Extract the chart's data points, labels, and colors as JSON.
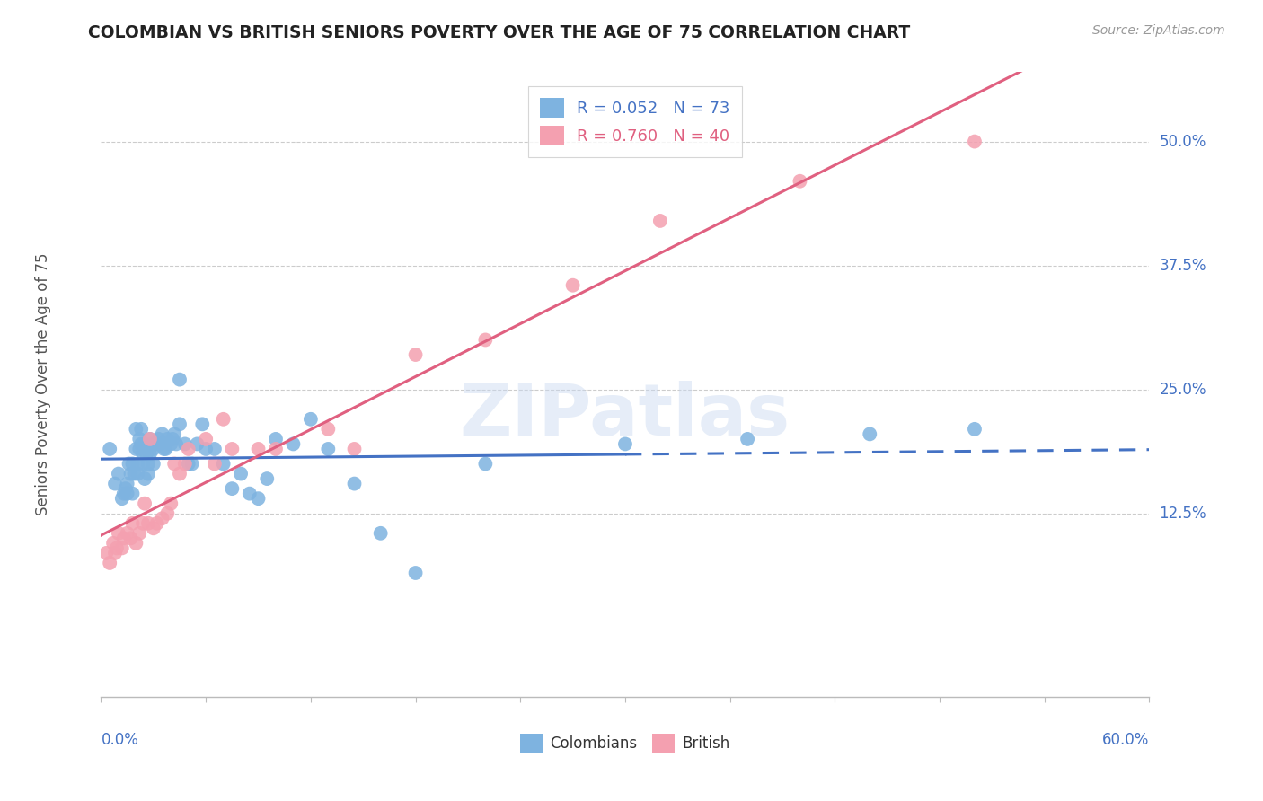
{
  "title": "COLOMBIAN VS BRITISH SENIORS POVERTY OVER THE AGE OF 75 CORRELATION CHART",
  "source": "Source: ZipAtlas.com",
  "ylabel": "Seniors Poverty Over the Age of 75",
  "ytick_values": [
    0.125,
    0.25,
    0.375,
    0.5
  ],
  "ytick_labels": [
    "12.5%",
    "25.0%",
    "37.5%",
    "50.0%"
  ],
  "xmin": 0.0,
  "xmax": 0.6,
  "ymin": -0.06,
  "ymax": 0.57,
  "colombian_R": 0.052,
  "colombian_N": 73,
  "british_R": 0.76,
  "british_N": 40,
  "colombian_color": "#7eb3e0",
  "british_color": "#f4a0b0",
  "colombian_line_color": "#4472c4",
  "british_line_color": "#e06080",
  "grid_color": "#cccccc",
  "background_color": "#ffffff",
  "title_color": "#222222",
  "axis_label_color": "#4472c4",
  "source_color": "#999999",
  "watermark": "ZIPatlas",
  "dash_cutoff": 0.3,
  "col_scatter_x": [
    0.005,
    0.008,
    0.01,
    0.012,
    0.013,
    0.014,
    0.015,
    0.015,
    0.016,
    0.017,
    0.018,
    0.018,
    0.019,
    0.02,
    0.02,
    0.021,
    0.021,
    0.022,
    0.022,
    0.023,
    0.023,
    0.024,
    0.024,
    0.025,
    0.025,
    0.026,
    0.026,
    0.027,
    0.027,
    0.028,
    0.028,
    0.029,
    0.03,
    0.03,
    0.031,
    0.032,
    0.033,
    0.034,
    0.035,
    0.036,
    0.037,
    0.038,
    0.04,
    0.041,
    0.042,
    0.043,
    0.045,
    0.045,
    0.048,
    0.05,
    0.052,
    0.055,
    0.058,
    0.06,
    0.065,
    0.07,
    0.075,
    0.08,
    0.085,
    0.09,
    0.095,
    0.1,
    0.11,
    0.12,
    0.13,
    0.145,
    0.16,
    0.18,
    0.22,
    0.3,
    0.37,
    0.44,
    0.5
  ],
  "col_scatter_y": [
    0.19,
    0.155,
    0.165,
    0.14,
    0.145,
    0.15,
    0.155,
    0.145,
    0.175,
    0.165,
    0.175,
    0.145,
    0.165,
    0.19,
    0.21,
    0.165,
    0.175,
    0.2,
    0.19,
    0.21,
    0.195,
    0.175,
    0.185,
    0.195,
    0.16,
    0.185,
    0.19,
    0.175,
    0.165,
    0.2,
    0.185,
    0.195,
    0.175,
    0.19,
    0.195,
    0.195,
    0.2,
    0.195,
    0.205,
    0.19,
    0.19,
    0.2,
    0.195,
    0.2,
    0.205,
    0.195,
    0.215,
    0.26,
    0.195,
    0.175,
    0.175,
    0.195,
    0.215,
    0.19,
    0.19,
    0.175,
    0.15,
    0.165,
    0.145,
    0.14,
    0.16,
    0.2,
    0.195,
    0.22,
    0.19,
    0.155,
    0.105,
    0.065,
    0.175,
    0.195,
    0.2,
    0.205,
    0.21
  ],
  "brit_scatter_x": [
    0.003,
    0.005,
    0.007,
    0.008,
    0.009,
    0.01,
    0.012,
    0.013,
    0.015,
    0.017,
    0.018,
    0.02,
    0.022,
    0.024,
    0.025,
    0.027,
    0.028,
    0.03,
    0.032,
    0.035,
    0.038,
    0.04,
    0.042,
    0.045,
    0.048,
    0.05,
    0.06,
    0.065,
    0.07,
    0.075,
    0.09,
    0.1,
    0.13,
    0.145,
    0.18,
    0.22,
    0.27,
    0.32,
    0.4,
    0.5
  ],
  "brit_scatter_y": [
    0.085,
    0.075,
    0.095,
    0.085,
    0.09,
    0.105,
    0.09,
    0.1,
    0.105,
    0.1,
    0.115,
    0.095,
    0.105,
    0.115,
    0.135,
    0.115,
    0.2,
    0.11,
    0.115,
    0.12,
    0.125,
    0.135,
    0.175,
    0.165,
    0.175,
    0.19,
    0.2,
    0.175,
    0.22,
    0.19,
    0.19,
    0.19,
    0.21,
    0.19,
    0.285,
    0.3,
    0.355,
    0.42,
    0.46,
    0.5
  ]
}
